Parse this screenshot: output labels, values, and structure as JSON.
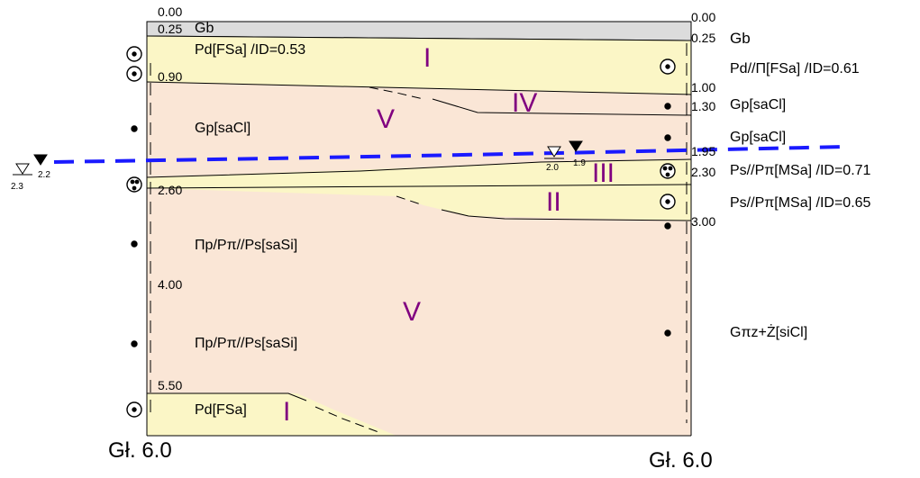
{
  "title_left": "Gł. 6.0",
  "title_right": "Gł. 6.0",
  "left_depths": [
    "0.00",
    "0.25",
    "0.90",
    "2.60",
    "4.00",
    "5.50"
  ],
  "right_depths": [
    "0.00",
    "0.25",
    "1.00",
    "1.30",
    "1.95",
    "2.30",
    "3.00"
  ],
  "left_layers": [
    "Gb",
    "Pd[FSa] /ID=0.53",
    "Gp[saCl]",
    "Πp/Pπ//Ps[saSi]",
    "Πp/Pπ//Ps[saSi]",
    "Pd[FSa]"
  ],
  "right_layers": [
    "Gb",
    "Pd//Π[FSa] /ID=0.61",
    "Gp[saCl]",
    "Gp[saCl]",
    "Ps//Pπ[MSa] /ID=0.71",
    "Ps//Pπ[MSa] /ID=0.65",
    "Gπz+Ż[siCl]"
  ],
  "roman": [
    "I",
    "IV",
    "V",
    "III",
    "II",
    "V",
    "I"
  ],
  "water": {
    "left_outer_a": "2.3",
    "left_outer_b": "2.2",
    "right_a": "2.0",
    "right_b": "1.9"
  },
  "colors": {
    "gb": "#dcdcdc",
    "sand": "#fbf6c6",
    "clay": "#fae6d6",
    "water_line": "#1a1aff",
    "roman": "#800080"
  }
}
